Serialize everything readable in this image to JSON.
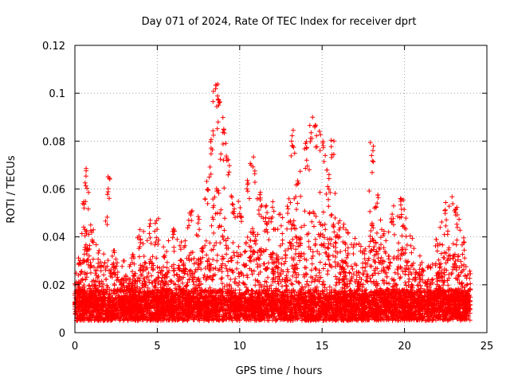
{
  "chart_data": {
    "type": "scatter",
    "title": "Day 071 of 2024, Rate Of TEC Index for receiver dprt",
    "xlabel": "GPS time / hours",
    "ylabel": "ROTI / TECUs",
    "xlim": [
      0,
      25
    ],
    "ylim": [
      0,
      0.12
    ],
    "xticks": [
      0,
      5,
      10,
      15,
      20,
      25
    ],
    "yticks": [
      0,
      0.02,
      0.04,
      0.06,
      0.08,
      0.1,
      0.12
    ],
    "xtick_labels": [
      "0",
      "5",
      "10",
      "15",
      "20",
      "25"
    ],
    "ytick_labels": [
      "0",
      "0.02",
      "0.04",
      "0.06",
      "0.08",
      "0.1",
      "0.12"
    ],
    "grid": true,
    "marker": "+",
    "series_color": "#ff0000",
    "data_range_hours": [
      0,
      24
    ],
    "approx_envelope": [
      [
        0.0,
        0.022
      ],
      [
        0.3,
        0.035
      ],
      [
        0.6,
        0.055
      ],
      [
        0.7,
        0.072
      ],
      [
        1.0,
        0.045
      ],
      [
        1.5,
        0.035
      ],
      [
        2.1,
        0.067
      ],
      [
        2.5,
        0.035
      ],
      [
        3.0,
        0.03
      ],
      [
        3.5,
        0.035
      ],
      [
        4.0,
        0.045
      ],
      [
        4.5,
        0.048
      ],
      [
        5.0,
        0.05
      ],
      [
        5.5,
        0.035
      ],
      [
        6.0,
        0.045
      ],
      [
        6.5,
        0.04
      ],
      [
        7.0,
        0.055
      ],
      [
        7.5,
        0.05
      ],
      [
        8.0,
        0.065
      ],
      [
        8.3,
        0.085
      ],
      [
        8.5,
        0.108
      ],
      [
        8.7,
        0.105
      ],
      [
        9.0,
        0.09
      ],
      [
        9.3,
        0.075
      ],
      [
        9.6,
        0.06
      ],
      [
        10.0,
        0.055
      ],
      [
        10.5,
        0.068
      ],
      [
        10.8,
        0.074
      ],
      [
        11.2,
        0.06
      ],
      [
        11.6,
        0.055
      ],
      [
        12.0,
        0.055
      ],
      [
        12.5,
        0.05
      ],
      [
        13.0,
        0.058
      ],
      [
        13.2,
        0.085
      ],
      [
        13.5,
        0.065
      ],
      [
        14.0,
        0.08
      ],
      [
        14.3,
        0.09
      ],
      [
        14.6,
        0.087
      ],
      [
        15.0,
        0.085
      ],
      [
        15.3,
        0.07
      ],
      [
        15.6,
        0.083
      ],
      [
        16.0,
        0.05
      ],
      [
        16.5,
        0.045
      ],
      [
        17.0,
        0.04
      ],
      [
        17.5,
        0.035
      ],
      [
        18.0,
        0.082
      ],
      [
        18.3,
        0.06
      ],
      [
        18.8,
        0.045
      ],
      [
        19.3,
        0.055
      ],
      [
        19.7,
        0.059
      ],
      [
        20.0,
        0.055
      ],
      [
        20.5,
        0.04
      ],
      [
        21.0,
        0.035
      ],
      [
        21.5,
        0.03
      ],
      [
        22.0,
        0.04
      ],
      [
        22.5,
        0.055
      ],
      [
        23.0,
        0.06
      ],
      [
        23.3,
        0.05
      ],
      [
        23.6,
        0.04
      ],
      [
        24.0,
        0.025
      ]
    ]
  }
}
